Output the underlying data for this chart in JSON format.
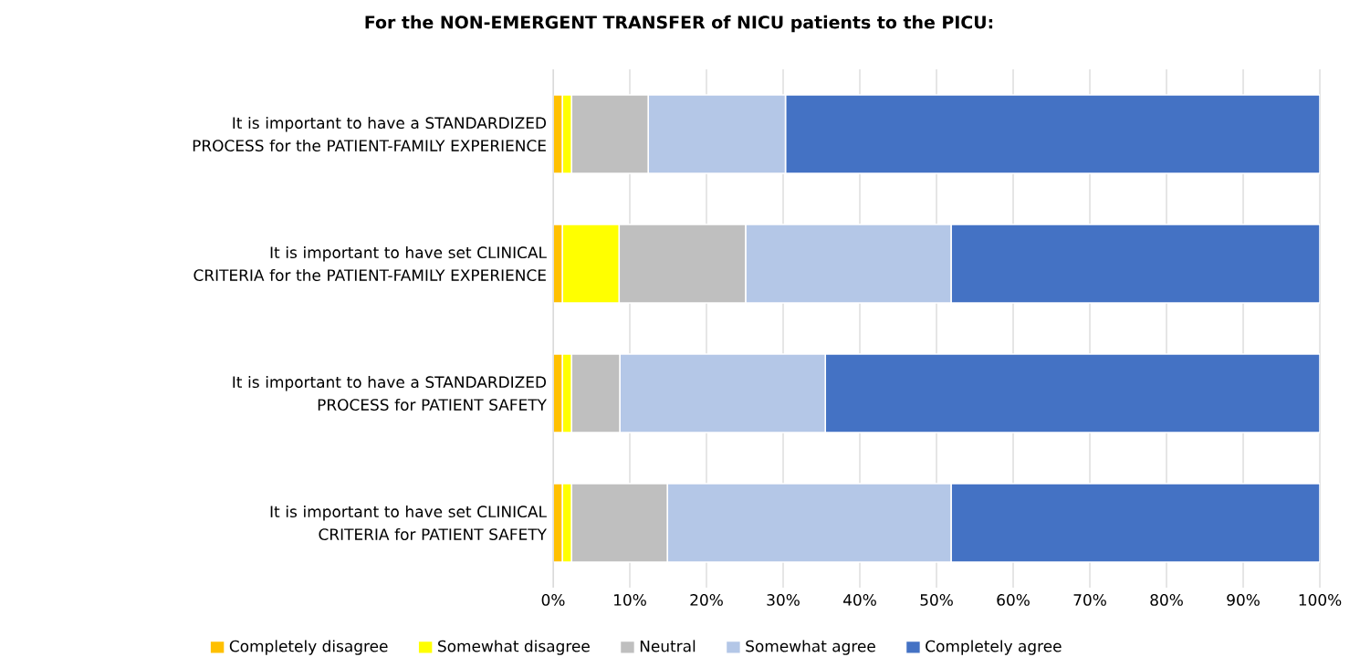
{
  "chart_data": {
    "type": "bar",
    "orientation": "horizontal",
    "stacked": true,
    "title": "For the NON-EMERGENT TRANSFER of NICU patients to the PICU:",
    "categories": [
      "It is important to have a STANDARDIZED PROCESS for the PATIENT-FAMILY EXPERIENCE",
      "It is important to have set CLINICAL CRITERIA for the PATIENT-FAMILY EXPERIENCE",
      "It is important to have a STANDARDIZED PROCESS for PATIENT SAFETY",
      "It is important to have set CLINICAL CRITERIA for PATIENT SAFETY"
    ],
    "series": [
      {
        "name": "Completely disagree",
        "color": "#ffc000",
        "values": [
          1.2,
          1.2,
          1.2,
          1.2
        ]
      },
      {
        "name": "Somewhat disagree",
        "color": "#ffff00",
        "values": [
          1.2,
          7.4,
          1.2,
          1.2
        ]
      },
      {
        "name": "Neutral",
        "color": "#bfbfbf",
        "values": [
          10.0,
          16.5,
          6.3,
          12.5
        ]
      },
      {
        "name": "Somewhat agree",
        "color": "#b4c7e7",
        "values": [
          17.9,
          26.8,
          26.8,
          37.0
        ]
      },
      {
        "name": "Completely agree",
        "color": "#4472c4",
        "values": [
          69.7,
          48.1,
          64.5,
          48.1
        ]
      }
    ],
    "xlim": [
      0,
      100
    ],
    "xticks": [
      {
        "value": 0,
        "label": "0%"
      },
      {
        "value": 10,
        "label": "10%"
      },
      {
        "value": 20,
        "label": "20%"
      },
      {
        "value": 30,
        "label": "30%"
      },
      {
        "value": 40,
        "label": "40%"
      },
      {
        "value": 50,
        "label": "50%"
      },
      {
        "value": 60,
        "label": "60%"
      },
      {
        "value": 70,
        "label": "70%"
      },
      {
        "value": 80,
        "label": "80%"
      },
      {
        "value": 90,
        "label": "90%"
      },
      {
        "value": 100,
        "label": "100%"
      }
    ],
    "grid": "x",
    "legend": "bottom"
  }
}
